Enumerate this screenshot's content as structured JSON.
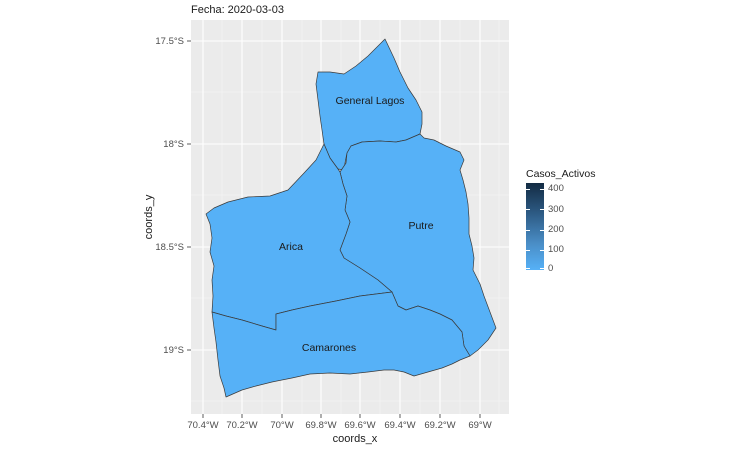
{
  "title": "Fecha: 2020-03-03",
  "axes": {
    "x_title": "coords_x",
    "y_title": "coords_y",
    "x_ticks": [
      "70.4°W",
      "70.2°W",
      "70°W",
      "69.8°W",
      "69.6°W",
      "69.4°W",
      "69.2°W",
      "69°W"
    ],
    "y_ticks": [
      "17.5°S",
      "18°S",
      "18.5°S",
      "19°S"
    ]
  },
  "legend": {
    "title": "Casos_Activos",
    "ticks": [
      "400",
      "300",
      "200",
      "100",
      "0"
    ],
    "low_color": "#56b1f7",
    "high_color": "#132b43"
  },
  "regions": [
    {
      "name": "General Lagos",
      "casos_activos": 0,
      "color": "#56b1f7"
    },
    {
      "name": "Putre",
      "casos_activos": 0,
      "color": "#56b1f7"
    },
    {
      "name": "Arica",
      "casos_activos": 0,
      "color": "#56b1f7"
    },
    {
      "name": "Camarones",
      "casos_activos": 0,
      "color": "#56b1f7"
    }
  ],
  "colors": {
    "panel_bg": "#ebebeb",
    "grid": "#ffffff",
    "region_fill": "#56b1f7",
    "region_stroke": "#3a3a3a"
  }
}
